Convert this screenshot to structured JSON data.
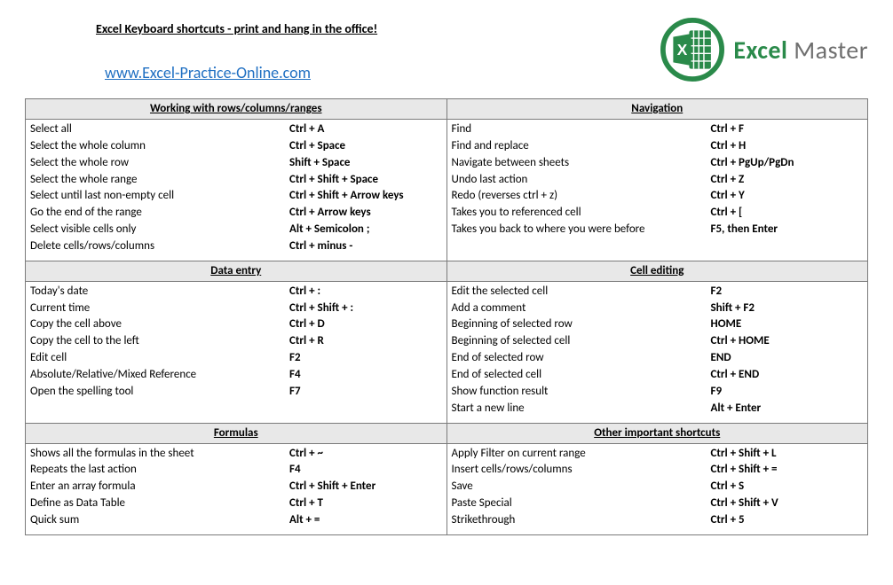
{
  "title": "Excel Keyboard shortcuts - print and hang in the office!",
  "site_url": "www.Excel-Practice-Online.com",
  "logo": {
    "brand_word1": "Excel",
    "brand_word2": "Master",
    "accent_color": "#2a8a4a",
    "grey_color": "#8a8a8a"
  },
  "sections": [
    {
      "title": "Working with rows/columns/ranges",
      "rows": [
        {
          "desc": "Select all",
          "keys": "Ctrl + A"
        },
        {
          "desc": "Select the whole column",
          "keys": "Ctrl + Space"
        },
        {
          "desc": "Select the whole row",
          "keys": "Shift + Space"
        },
        {
          "desc": "Select the whole range",
          "keys": "Ctrl + Shift + Space"
        },
        {
          "desc": "Select until last non-empty cell",
          "keys": "Ctrl + Shift + Arrow keys"
        },
        {
          "desc": "Go the end of the range",
          "keys": "Ctrl + Arrow keys"
        },
        {
          "desc": "Select visible cells only",
          "keys": "Alt + Semicolon ;"
        },
        {
          "desc": "Delete cells/rows/columns",
          "keys": "Ctrl + minus -"
        }
      ]
    },
    {
      "title": "Navigation",
      "rows": [
        {
          "desc": "Find",
          "keys": "Ctrl + F"
        },
        {
          "desc": "Find and replace",
          "keys": "Ctrl + H"
        },
        {
          "desc": "Navigate between sheets",
          "keys": "Ctrl + PgUp/PgDn"
        },
        {
          "desc": "Undo last action",
          "keys": "Ctrl + Z"
        },
        {
          "desc": "Redo (reverses ctrl + z)",
          "keys": "Ctrl + Y"
        },
        {
          "desc": "Takes you to referenced cell",
          "keys": "Ctrl + ["
        },
        {
          "desc": "Takes you back to where you were before",
          "keys": "F5, then Enter"
        }
      ]
    },
    {
      "title": "Data entry",
      "rows": [
        {
          "desc": "Today's date",
          "keys": "Ctrl + :"
        },
        {
          "desc": "Current time",
          "keys": "Ctrl + Shift + :"
        },
        {
          "desc": "Copy the cell above",
          "keys": "Ctrl + D"
        },
        {
          "desc": "Copy the cell to the left",
          "keys": "Ctrl + R"
        },
        {
          "desc": "Edit cell",
          "keys": "F2"
        },
        {
          "desc": "Absolute/Relative/Mixed Reference",
          "keys": "F4"
        },
        {
          "desc": "Open the spelling tool",
          "keys": "F7"
        }
      ]
    },
    {
      "title": "Cell editing",
      "rows": [
        {
          "desc": "Edit the selected cell",
          "keys": "F2"
        },
        {
          "desc": "Add a comment",
          "keys": "Shift + F2"
        },
        {
          "desc": "Beginning of selected row",
          "keys": "HOME"
        },
        {
          "desc": "Beginning of selected cell",
          "keys": "Ctrl + HOME"
        },
        {
          "desc": "End of selected row",
          "keys": "END"
        },
        {
          "desc": "End of selected cell",
          "keys": "Ctrl + END"
        },
        {
          "desc": "Show function result",
          "keys": "F9"
        },
        {
          "desc": "Start a new line",
          "keys": "Alt + Enter"
        }
      ]
    },
    {
      "title": "Formulas",
      "rows": [
        {
          "desc": "Shows all the formulas in the sheet",
          "keys": "Ctrl + ~"
        },
        {
          "desc": "Repeats the last action",
          "keys": "F4"
        },
        {
          "desc": "Enter an array formula",
          "keys": "Ctrl + Shift + Enter"
        },
        {
          "desc": "Define as Data Table",
          "keys": "Ctrl + T"
        },
        {
          "desc": "Quick sum",
          "keys": "Alt + ="
        }
      ]
    },
    {
      "title": "Other important shortcuts",
      "rows": [
        {
          "desc": "Apply Filter on current range",
          "keys": "Ctrl + Shift + L"
        },
        {
          "desc": "Insert cells/rows/columns",
          "keys": "Ctrl + Shift + ="
        },
        {
          "desc": "Save",
          "keys": "Ctrl + S"
        },
        {
          "desc": "Paste Special",
          "keys": "Ctrl + Shift + V"
        },
        {
          "desc": "Strikethrough",
          "keys": "Ctrl + 5"
        }
      ]
    }
  ]
}
